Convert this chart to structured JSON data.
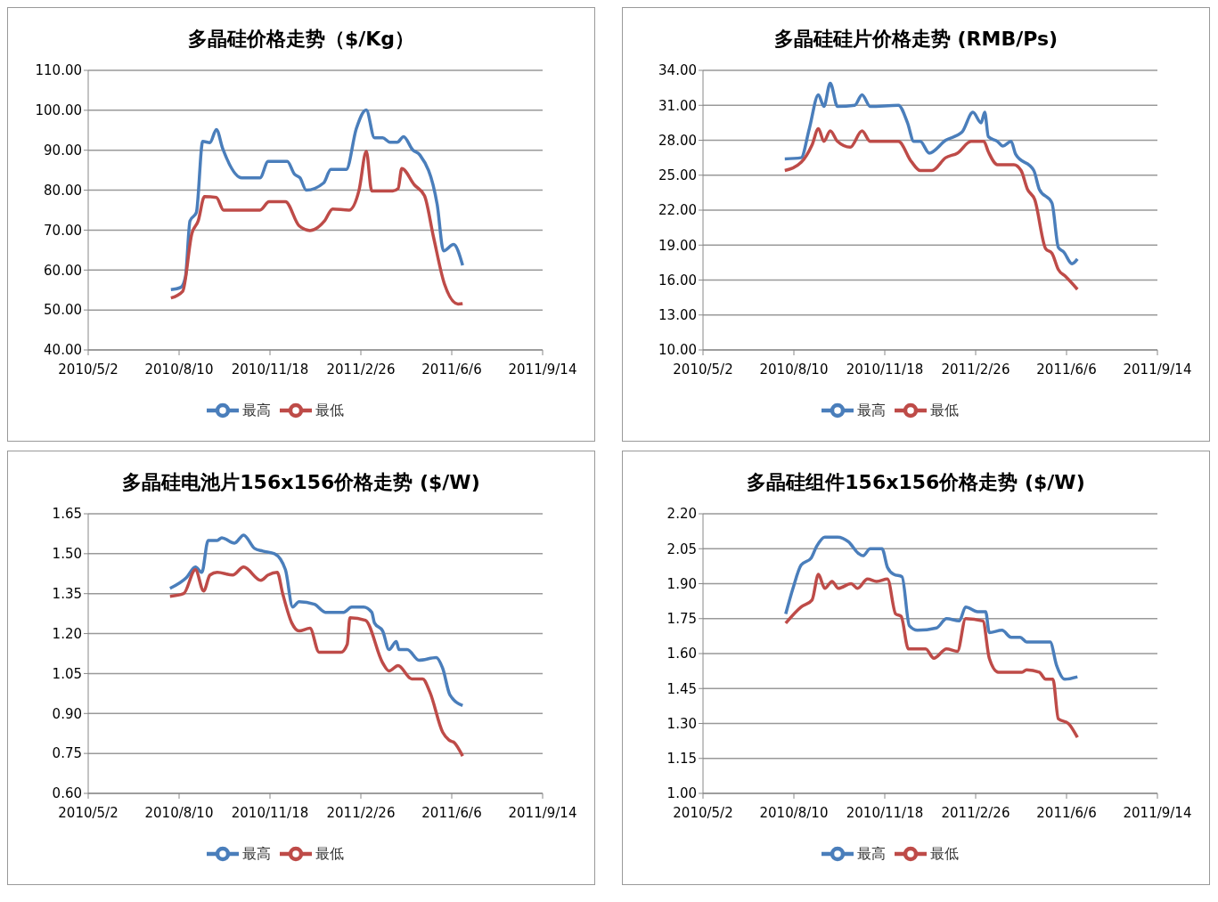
{
  "chart_data": [
    {
      "type": "line",
      "title": "多晶硅价格走势（$/Kg）",
      "grid": "y",
      "legend": "bottom",
      "marker": "none",
      "line_style": "solid",
      "xlim": [
        "2010-05-02",
        "2011-09-14"
      ],
      "xticks": [
        {
          "value": "2010-05-02",
          "label": "2010/5/2"
        },
        {
          "value": "2010-08-10",
          "label": "2010/8/10"
        },
        {
          "value": "2010-11-18",
          "label": "2010/11/18"
        },
        {
          "value": "2011-02-26",
          "label": "2011/2/26"
        },
        {
          "value": "2011-06-06",
          "label": "2011/6/6"
        },
        {
          "value": "2011-09-14",
          "label": "2011/9/14"
        }
      ],
      "ylim": [
        40,
        110
      ],
      "yticks": [
        {
          "value": 40,
          "label": "40.00"
        },
        {
          "value": 50,
          "label": "50.00"
        },
        {
          "value": 60,
          "label": "60.00"
        },
        {
          "value": 70,
          "label": "70.00"
        },
        {
          "value": 80,
          "label": "80.00"
        },
        {
          "value": 90,
          "label": "90.00"
        },
        {
          "value": 100,
          "label": "100.00"
        },
        {
          "value": 110,
          "label": "110.00"
        }
      ],
      "series": [
        {
          "name": "最高",
          "color": "#4a7ebb",
          "x": [
            "2010-08-01",
            "2010-08-12",
            "2010-08-17",
            "2010-08-22",
            "2010-08-29",
            "2010-09-05",
            "2010-09-13",
            "2010-09-20",
            "2010-09-27",
            "2010-10-18",
            "2010-11-07",
            "2010-11-16",
            "2010-12-07",
            "2010-12-15",
            "2010-12-21",
            "2010-12-28",
            "2011-01-16",
            "2011-01-24",
            "2011-02-10",
            "2011-02-21",
            "2011-03-04",
            "2011-03-13",
            "2011-03-22",
            "2011-03-30",
            "2011-04-07",
            "2011-04-14",
            "2011-04-24",
            "2011-05-02",
            "2011-05-21",
            "2011-05-28",
            "2011-06-08",
            "2011-06-18"
          ],
          "values": [
            55.1,
            55.7,
            58.3,
            72.3,
            74.4,
            92.2,
            91.9,
            95.2,
            90.4,
            83.1,
            83.1,
            87.2,
            87.2,
            84.0,
            83.1,
            80.0,
            81.8,
            85.2,
            85.2,
            95.4,
            100.1,
            93.1,
            93.1,
            92.0,
            92.0,
            93.4,
            90.1,
            88.8,
            76.4,
            64.8,
            66.4,
            61.2
          ]
        },
        {
          "name": "最低",
          "color": "#be4b48",
          "x": [
            "2010-08-01",
            "2010-08-14",
            "2010-08-24",
            "2010-08-31",
            "2010-09-07",
            "2010-09-20",
            "2010-09-28",
            "2010-11-07",
            "2010-11-17",
            "2010-12-05",
            "2010-12-20",
            "2011-01-01",
            "2011-01-17",
            "2011-01-26",
            "2011-02-13",
            "2011-02-24",
            "2011-03-04",
            "2011-03-10",
            "2011-04-02",
            "2011-04-08",
            "2011-04-12",
            "2011-04-26",
            "2011-05-07",
            "2011-05-17",
            "2011-05-29",
            "2011-06-13",
            "2011-06-18"
          ],
          "values": [
            53.0,
            54.7,
            69.1,
            72.3,
            78.4,
            78.2,
            75.0,
            75.0,
            77.1,
            77.1,
            71.1,
            69.9,
            72.3,
            75.3,
            75.0,
            80.0,
            89.7,
            79.8,
            79.8,
            80.4,
            85.4,
            81.3,
            78.6,
            68.2,
            56.5,
            51.5,
            51.6
          ]
        }
      ]
    },
    {
      "type": "line",
      "title": "多晶硅硅片价格走势 (RMB/Ps)",
      "grid": "y",
      "legend": "bottom",
      "marker": "none",
      "line_style": "solid",
      "xlim": [
        "2010-05-02",
        "2011-09-14"
      ],
      "xticks": [
        {
          "value": "2010-05-02",
          "label": "2010/5/2"
        },
        {
          "value": "2010-08-10",
          "label": "2010/8/10"
        },
        {
          "value": "2010-11-18",
          "label": "2010/11/18"
        },
        {
          "value": "2011-02-26",
          "label": "2011/2/26"
        },
        {
          "value": "2011-06-06",
          "label": "2011/6/6"
        },
        {
          "value": "2011-09-14",
          "label": "2011/9/14"
        }
      ],
      "ylim": [
        10,
        34
      ],
      "yticks": [
        {
          "value": 10,
          "label": "10.00"
        },
        {
          "value": 13,
          "label": "13.00"
        },
        {
          "value": 16,
          "label": "16.00"
        },
        {
          "value": 19,
          "label": "19.00"
        },
        {
          "value": 22,
          "label": "22.00"
        },
        {
          "value": 25,
          "label": "25.00"
        },
        {
          "value": 28,
          "label": "28.00"
        },
        {
          "value": 31,
          "label": "31.00"
        },
        {
          "value": 34,
          "label": "34.00"
        }
      ],
      "series": [
        {
          "name": "最高",
          "color": "#4a7ebb",
          "x": [
            "2010-07-31",
            "2010-08-18",
            "2010-08-27",
            "2010-09-06",
            "2010-09-12",
            "2010-09-19",
            "2010-09-27",
            "2010-10-16",
            "2010-10-24",
            "2010-11-02",
            "2010-12-03",
            "2010-12-13",
            "2010-12-20",
            "2010-12-27",
            "2011-01-06",
            "2011-01-24",
            "2011-02-11",
            "2011-02-23",
            "2011-03-04",
            "2011-03-08",
            "2011-03-12",
            "2011-03-22",
            "2011-03-28",
            "2011-04-06",
            "2011-04-11",
            "2011-05-01",
            "2011-05-07",
            "2011-05-21",
            "2011-05-28",
            "2011-06-03",
            "2011-06-12",
            "2011-06-18"
          ],
          "values": [
            26.4,
            26.5,
            29.0,
            31.9,
            30.9,
            32.9,
            30.9,
            31.0,
            31.9,
            30.9,
            31.0,
            29.5,
            27.9,
            27.9,
            26.9,
            28.0,
            28.7,
            30.4,
            29.5,
            30.4,
            28.3,
            27.9,
            27.5,
            27.9,
            26.8,
            25.4,
            23.8,
            22.6,
            18.8,
            18.4,
            17.4,
            17.8
          ]
        },
        {
          "name": "最低",
          "color": "#be4b48",
          "x": [
            "2010-07-31",
            "2010-08-18",
            "2010-08-30",
            "2010-09-06",
            "2010-09-12",
            "2010-09-19",
            "2010-09-27",
            "2010-10-11",
            "2010-10-24",
            "2010-11-02",
            "2010-12-03",
            "2010-12-17",
            "2010-12-27",
            "2011-01-09",
            "2011-01-24",
            "2011-02-06",
            "2011-02-21",
            "2011-03-07",
            "2011-03-12",
            "2011-03-22",
            "2011-04-09",
            "2011-04-17",
            "2011-04-24",
            "2011-05-02",
            "2011-05-14",
            "2011-05-21",
            "2011-05-28",
            "2011-06-05",
            "2011-06-18"
          ],
          "values": [
            25.4,
            26.1,
            27.6,
            29.0,
            27.9,
            28.8,
            27.9,
            27.4,
            28.8,
            27.9,
            27.9,
            26.2,
            25.4,
            25.4,
            26.5,
            26.9,
            27.9,
            27.9,
            27.0,
            25.9,
            25.9,
            25.4,
            23.8,
            22.9,
            18.7,
            18.3,
            16.9,
            16.3,
            15.2
          ]
        }
      ]
    },
    {
      "type": "line",
      "title": "多晶硅电池片156x156价格走势 ($/W)",
      "grid": "y",
      "legend": "bottom",
      "marker": "none",
      "line_style": "solid",
      "xlim": [
        "2010-05-02",
        "2011-09-14"
      ],
      "xticks": [
        {
          "value": "2010-05-02",
          "label": "2010/5/2"
        },
        {
          "value": "2010-08-10",
          "label": "2010/8/10"
        },
        {
          "value": "2010-11-18",
          "label": "2010/11/18"
        },
        {
          "value": "2011-02-26",
          "label": "2011/2/26"
        },
        {
          "value": "2011-06-06",
          "label": "2011/6/6"
        },
        {
          "value": "2011-09-14",
          "label": "2011/9/14"
        }
      ],
      "ylim": [
        0.6,
        1.65
      ],
      "yticks": [
        {
          "value": 0.6,
          "label": "0.60"
        },
        {
          "value": 0.75,
          "label": "0.75"
        },
        {
          "value": 0.9,
          "label": "0.90"
        },
        {
          "value": 1.05,
          "label": "1.05"
        },
        {
          "value": 1.2,
          "label": "1.20"
        },
        {
          "value": 1.35,
          "label": "1.35"
        },
        {
          "value": 1.5,
          "label": "1.50"
        },
        {
          "value": 1.65,
          "label": "1.65"
        }
      ],
      "series": [
        {
          "name": "最高",
          "color": "#4a7ebb",
          "x": [
            "2010-07-31",
            "2010-08-18",
            "2010-08-28",
            "2010-09-04",
            "2010-09-11",
            "2010-09-21",
            "2010-09-26",
            "2010-10-10",
            "2010-10-20",
            "2010-11-01",
            "2010-11-10",
            "2010-11-23",
            "2010-12-05",
            "2010-12-13",
            "2010-12-20",
            "2011-01-06",
            "2011-01-18",
            "2011-02-07",
            "2011-02-16",
            "2011-03-01",
            "2011-03-10",
            "2011-03-13",
            "2011-03-22",
            "2011-03-29",
            "2011-04-06",
            "2011-04-09",
            "2011-04-18",
            "2011-05-01",
            "2011-05-20",
            "2011-05-27",
            "2011-06-04",
            "2011-06-18"
          ],
          "values": [
            1.37,
            1.41,
            1.45,
            1.43,
            1.55,
            1.55,
            1.56,
            1.54,
            1.57,
            1.52,
            1.51,
            1.5,
            1.44,
            1.3,
            1.32,
            1.31,
            1.28,
            1.28,
            1.3,
            1.3,
            1.28,
            1.24,
            1.21,
            1.14,
            1.17,
            1.14,
            1.14,
            1.1,
            1.11,
            1.07,
            0.97,
            0.93
          ]
        },
        {
          "name": "最低",
          "color": "#be4b48",
          "x": [
            "2010-07-31",
            "2010-08-15",
            "2010-08-28",
            "2010-09-06",
            "2010-09-13",
            "2010-09-21",
            "2010-10-08",
            "2010-10-20",
            "2010-11-08",
            "2010-11-16",
            "2010-11-26",
            "2010-12-02",
            "2010-12-12",
            "2010-12-20",
            "2011-01-01",
            "2011-01-11",
            "2011-02-04",
            "2011-02-11",
            "2011-02-14",
            "2011-03-03",
            "2011-03-22",
            "2011-03-29",
            "2011-04-08",
            "2011-04-23",
            "2011-05-05",
            "2011-05-13",
            "2011-05-27",
            "2011-06-03",
            "2011-06-09",
            "2011-06-18"
          ],
          "values": [
            1.34,
            1.35,
            1.44,
            1.36,
            1.42,
            1.43,
            1.42,
            1.45,
            1.4,
            1.42,
            1.43,
            1.35,
            1.24,
            1.21,
            1.22,
            1.13,
            1.13,
            1.16,
            1.26,
            1.25,
            1.09,
            1.06,
            1.08,
            1.03,
            1.03,
            0.98,
            0.83,
            0.8,
            0.79,
            0.74
          ]
        }
      ]
    },
    {
      "type": "line",
      "title": "多晶硅组件156x156价格走势 ($/W)",
      "grid": "y",
      "legend": "bottom",
      "marker": "none",
      "line_style": "solid",
      "xlim": [
        "2010-05-02",
        "2011-09-14"
      ],
      "xticks": [
        {
          "value": "2010-05-02",
          "label": "2010/5/2"
        },
        {
          "value": "2010-08-10",
          "label": "2010/8/10"
        },
        {
          "value": "2010-11-18",
          "label": "2010/11/18"
        },
        {
          "value": "2011-02-26",
          "label": "2011/2/26"
        },
        {
          "value": "2011-06-06",
          "label": "2011/6/6"
        },
        {
          "value": "2011-09-14",
          "label": "2011/9/14"
        }
      ],
      "ylim": [
        1.0,
        2.2
      ],
      "yticks": [
        {
          "value": 1.0,
          "label": "1.00"
        },
        {
          "value": 1.15,
          "label": "1.15"
        },
        {
          "value": 1.3,
          "label": "1.30"
        },
        {
          "value": 1.45,
          "label": "1.45"
        },
        {
          "value": 1.6,
          "label": "1.60"
        },
        {
          "value": 1.75,
          "label": "1.75"
        },
        {
          "value": 1.9,
          "label": "1.90"
        },
        {
          "value": 2.05,
          "label": "2.05"
        },
        {
          "value": 2.2,
          "label": "2.20"
        }
      ],
      "series": [
        {
          "name": "最高",
          "color": "#4a7ebb",
          "x": [
            "2010-08-01",
            "2010-08-09",
            "2010-08-18",
            "2010-08-29",
            "2010-09-04",
            "2010-09-13",
            "2010-09-27",
            "2010-10-09",
            "2010-10-20",
            "2010-10-25",
            "2010-11-02",
            "2010-11-15",
            "2010-11-21",
            "2010-11-28",
            "2010-12-07",
            "2010-12-15",
            "2010-12-24",
            "2011-01-14",
            "2011-01-25",
            "2011-02-08",
            "2011-02-15",
            "2011-02-28",
            "2011-03-09",
            "2011-03-13",
            "2011-03-27",
            "2011-04-06",
            "2011-04-16",
            "2011-04-23",
            "2011-05-19",
            "2011-05-26",
            "2011-06-04",
            "2011-06-18"
          ],
          "values": [
            1.77,
            1.88,
            1.98,
            2.01,
            2.06,
            2.1,
            2.1,
            2.08,
            2.03,
            2.02,
            2.05,
            2.05,
            1.97,
            1.94,
            1.93,
            1.72,
            1.7,
            1.71,
            1.75,
            1.74,
            1.8,
            1.78,
            1.78,
            1.69,
            1.7,
            1.67,
            1.67,
            1.65,
            1.65,
            1.55,
            1.49,
            1.5
          ]
        },
        {
          "name": "最低",
          "color": "#be4b48",
          "x": [
            "2010-08-01",
            "2010-08-18",
            "2010-08-30",
            "2010-09-06",
            "2010-09-13",
            "2010-09-21",
            "2010-09-28",
            "2010-10-12",
            "2010-10-19",
            "2010-10-30",
            "2010-11-09",
            "2010-11-21",
            "2010-11-30",
            "2010-12-06",
            "2010-12-14",
            "2011-01-02",
            "2011-01-11",
            "2011-01-25",
            "2011-02-06",
            "2011-02-15",
            "2011-03-06",
            "2011-03-13",
            "2011-03-23",
            "2011-04-18",
            "2011-04-23",
            "2011-05-07",
            "2011-05-14",
            "2011-05-22",
            "2011-05-28",
            "2011-06-08",
            "2011-06-18"
          ],
          "values": [
            1.73,
            1.8,
            1.83,
            1.94,
            1.88,
            1.91,
            1.88,
            1.9,
            1.88,
            1.92,
            1.91,
            1.92,
            1.77,
            1.76,
            1.62,
            1.62,
            1.58,
            1.62,
            1.61,
            1.75,
            1.74,
            1.58,
            1.52,
            1.52,
            1.53,
            1.52,
            1.49,
            1.49,
            1.32,
            1.3,
            1.24
          ]
        }
      ]
    }
  ]
}
